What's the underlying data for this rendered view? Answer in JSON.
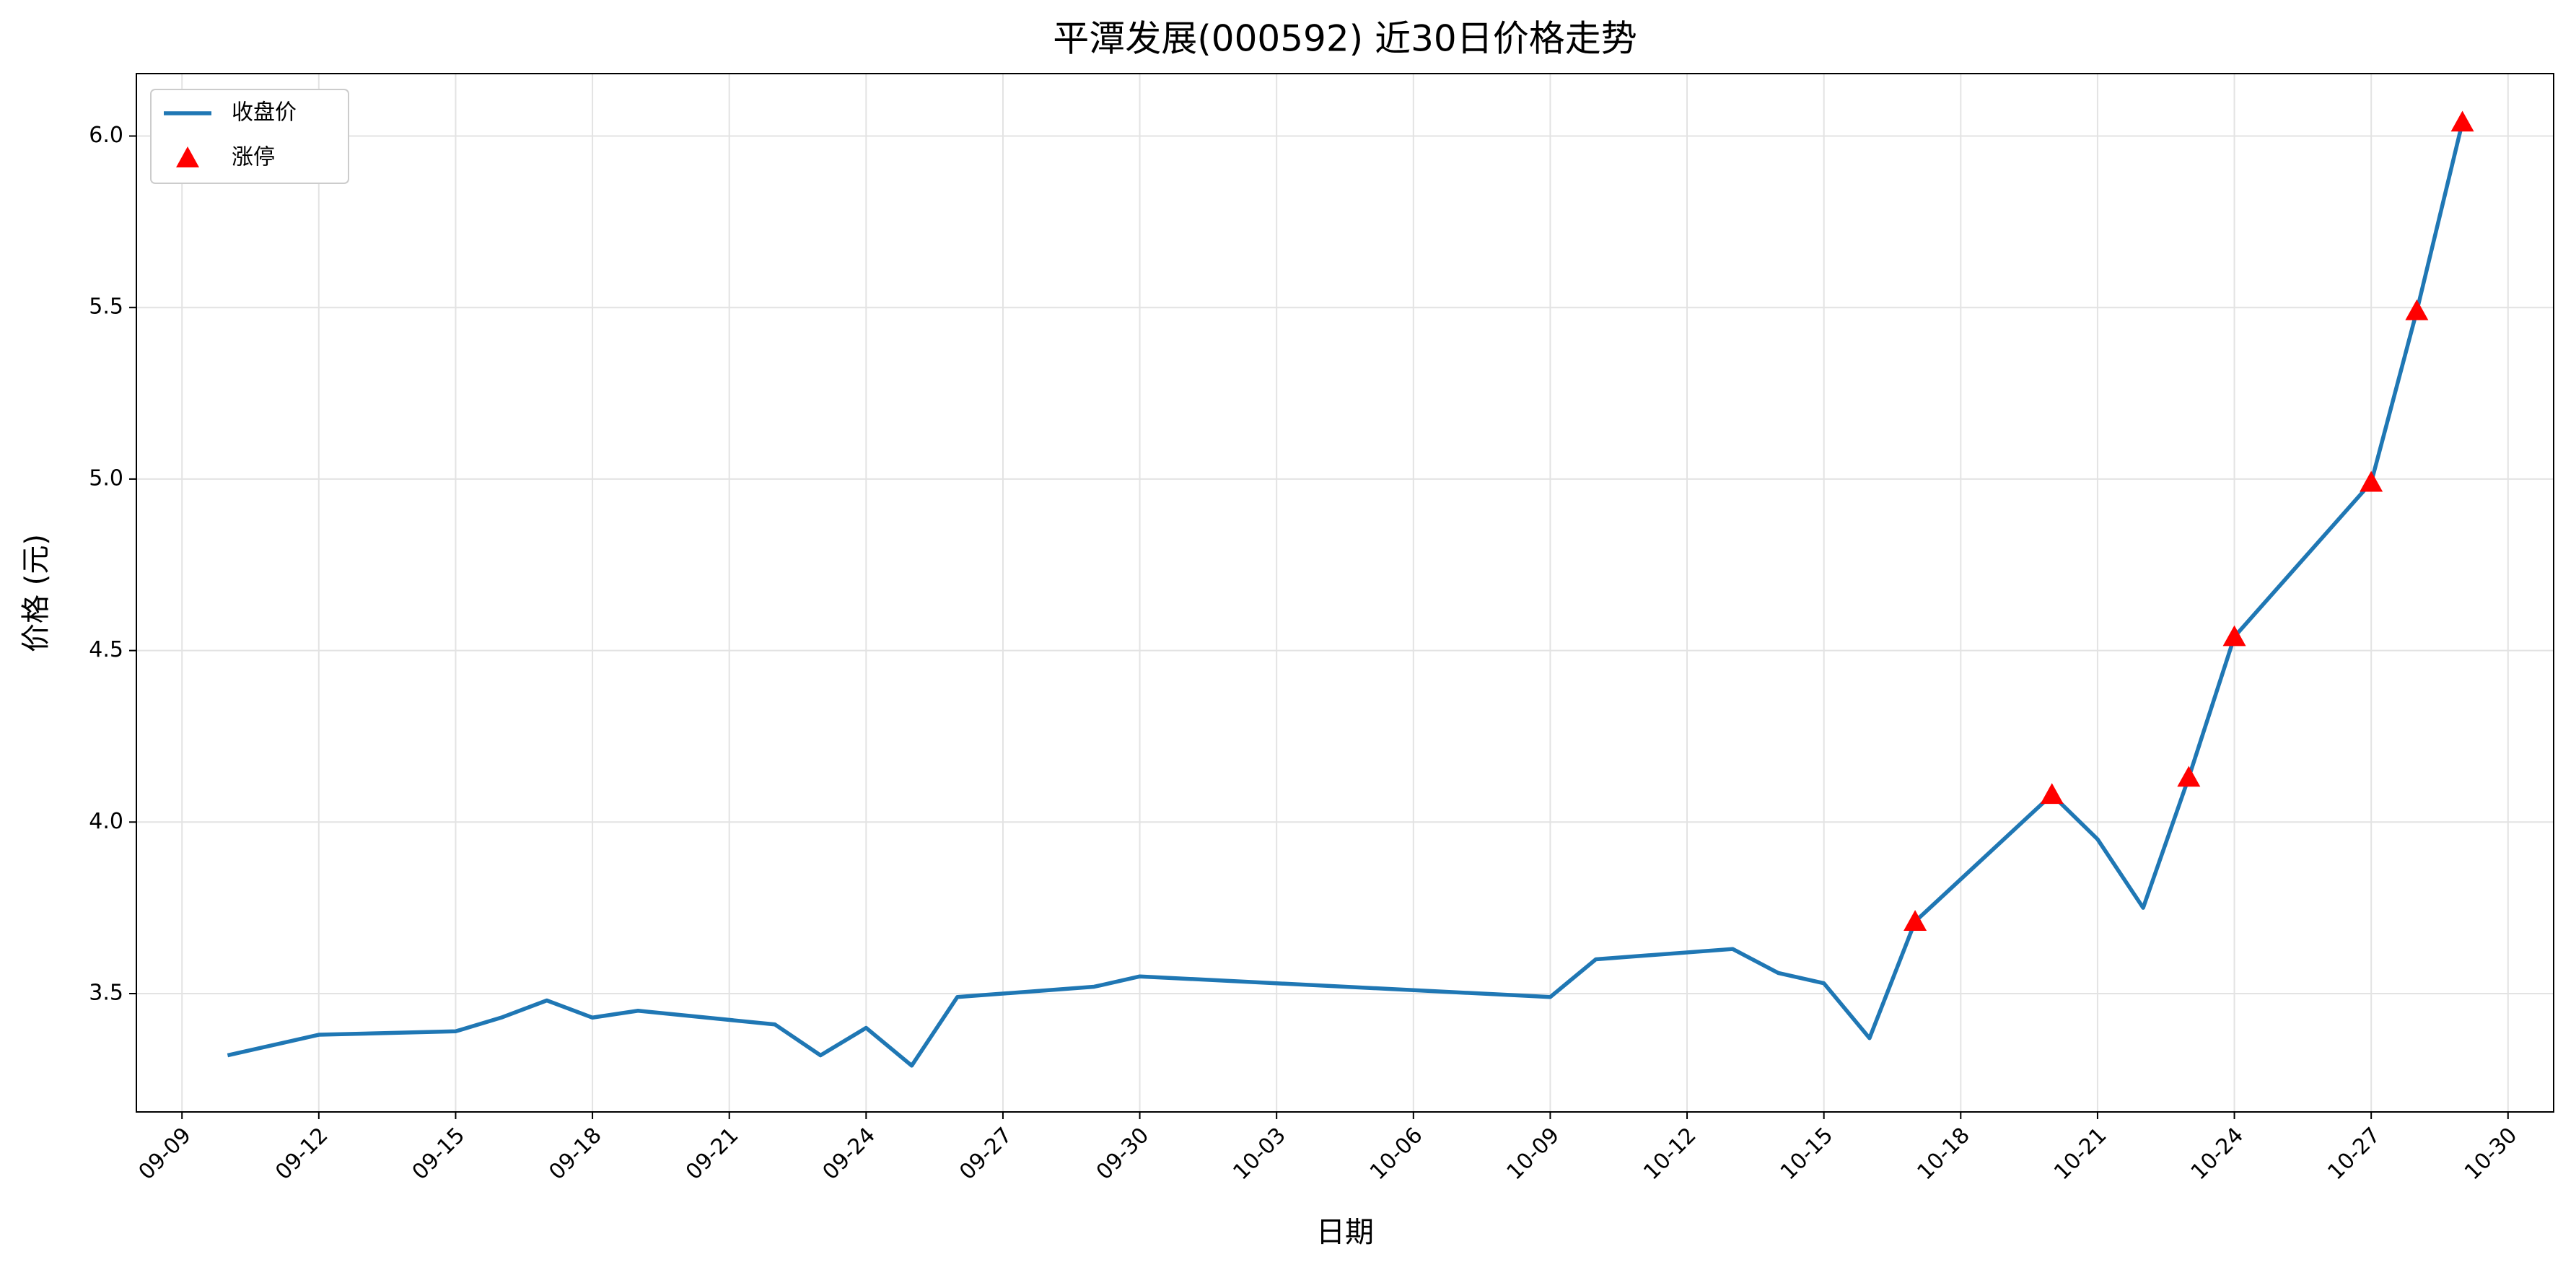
{
  "chart_data": {
    "type": "line",
    "title": "平潭发展(000592) 近30日价格走势",
    "x_label": "日期",
    "y_label": "价格 (元)",
    "x": [
      "09-10",
      "09-12",
      "09-15",
      "09-16",
      "09-17",
      "09-18",
      "09-19",
      "09-22",
      "09-23",
      "09-24",
      "09-25",
      "09-26",
      "09-29",
      "09-30",
      "10-09",
      "10-10",
      "10-13",
      "10-14",
      "10-15",
      "10-16",
      "10-17",
      "10-20",
      "10-21",
      "10-22",
      "10-23",
      "10-24",
      "10-27",
      "10-28",
      "10-29"
    ],
    "series": [
      {
        "name": "收盘价",
        "type": "line",
        "color": "#1f77b4",
        "values": [
          3.32,
          3.38,
          3.39,
          3.43,
          3.48,
          3.43,
          3.45,
          3.41,
          3.32,
          3.4,
          3.29,
          3.49,
          3.52,
          3.55,
          3.49,
          3.6,
          3.63,
          3.56,
          3.53,
          3.37,
          3.71,
          4.08,
          3.95,
          3.75,
          4.13,
          4.54,
          4.99,
          5.49,
          6.04
        ]
      },
      {
        "name": "涨停",
        "type": "scatter",
        "color": "#ff0000",
        "values": [
          null,
          null,
          null,
          null,
          null,
          null,
          null,
          null,
          null,
          null,
          null,
          null,
          null,
          null,
          null,
          null,
          null,
          null,
          null,
          null,
          3.71,
          4.08,
          null,
          null,
          4.13,
          4.54,
          4.99,
          5.49,
          6.04
        ]
      }
    ],
    "xlim": [
      "09-08",
      "10-31"
    ],
    "xticks": [
      "09-09",
      "09-12",
      "09-15",
      "09-18",
      "09-21",
      "09-24",
      "09-27",
      "09-30",
      "10-03",
      "10-06",
      "10-09",
      "10-12",
      "10-15",
      "10-18",
      "10-21",
      "10-24",
      "10-27",
      "10-30"
    ],
    "ylim": [
      3.155,
      6.182
    ],
    "yticks": [
      3.5,
      {
        "value": 4,
        "label": "4.0"
      },
      4.5,
      {
        "value": 5,
        "label": "5.0"
      },
      5.5,
      {
        "value": 6,
        "label": "6.0"
      }
    ],
    "grid": true,
    "legend": "upper left"
  }
}
